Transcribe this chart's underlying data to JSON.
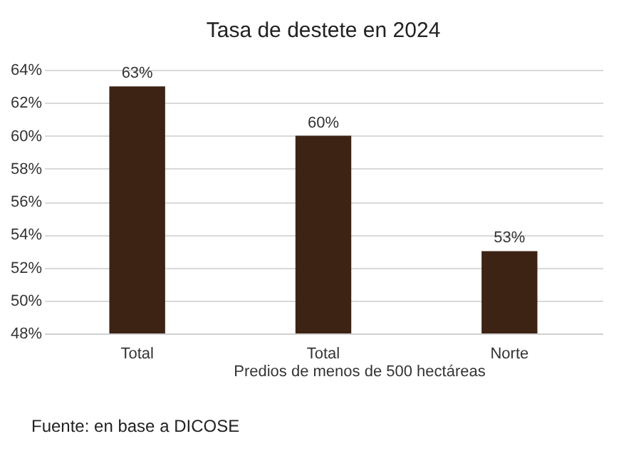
{
  "chart_data": {
    "type": "bar",
    "title": "Tasa de destete en 2024",
    "categories": [
      "Total",
      "Total",
      "Norte"
    ],
    "values": [
      63,
      60,
      53
    ],
    "value_labels": [
      "63%",
      "60%",
      "53%"
    ],
    "color": "#3d2314",
    "ylim": [
      48,
      64
    ],
    "yticks": [
      {
        "value": 48,
        "label": "48%"
      },
      {
        "value": 50,
        "label": "50%"
      },
      {
        "value": 52,
        "label": "52%"
      },
      {
        "value": 54,
        "label": "54%"
      },
      {
        "value": 56,
        "label": "56%"
      },
      {
        "value": 58,
        "label": "58%"
      },
      {
        "value": 60,
        "label": "60%"
      },
      {
        "value": 62,
        "label": "62%"
      },
      {
        "value": 64,
        "label": "64%"
      }
    ],
    "grid": "y",
    "annotations": [
      "Predios de menos de 500 hectáreas",
      "Fuente: en base a DICOSE"
    ]
  }
}
